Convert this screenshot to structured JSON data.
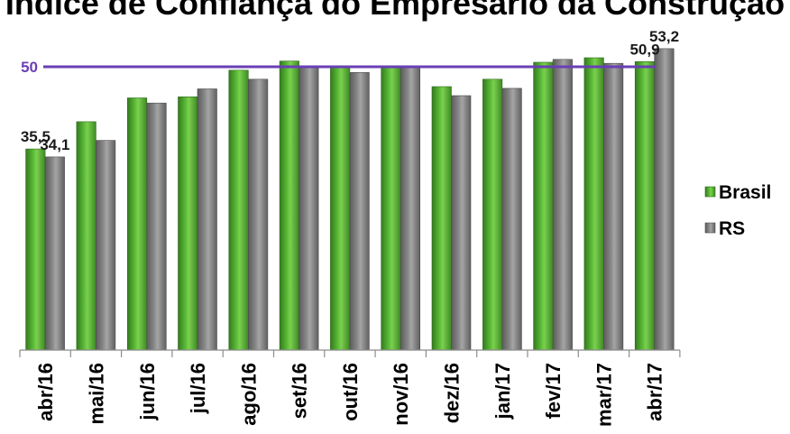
{
  "chart_data": {
    "type": "bar",
    "title": "Índice de Confiança do Empresário da Construção",
    "categories": [
      "abr/16",
      "mai/16",
      "jun/16",
      "jul/16",
      "ago/16",
      "set/16",
      "out/16",
      "nov/16",
      "dez/16",
      "jan/17",
      "fev/17",
      "mar/17",
      "abr/17"
    ],
    "series": [
      {
        "name": "Brasil",
        "color": "#4ea72e",
        "values": [
          35.5,
          40.3,
          44.5,
          44.7,
          49.4,
          51.0,
          50.0,
          50.0,
          46.5,
          47.8,
          50.8,
          51.6,
          50.9
        ]
      },
      {
        "name": "RS",
        "color": "#7f7f7f",
        "values": [
          34.1,
          37.0,
          43.6,
          46.1,
          47.8,
          50.0,
          49.0,
          50.0,
          44.9,
          46.2,
          51.3,
          50.6,
          53.2
        ]
      }
    ],
    "data_labels": [
      {
        "series": 0,
        "index": 0,
        "text": "35,5"
      },
      {
        "series": 1,
        "index": 0,
        "text": "34,1"
      },
      {
        "series": 0,
        "index": 12,
        "text": "50,9"
      },
      {
        "series": 1,
        "index": 12,
        "text": "53,2"
      }
    ],
    "reference_line": {
      "value": 50,
      "label": "50",
      "color": "#6a3fb5"
    },
    "ylim": [
      0,
      55
    ],
    "grid": false,
    "legend_position": "right"
  }
}
